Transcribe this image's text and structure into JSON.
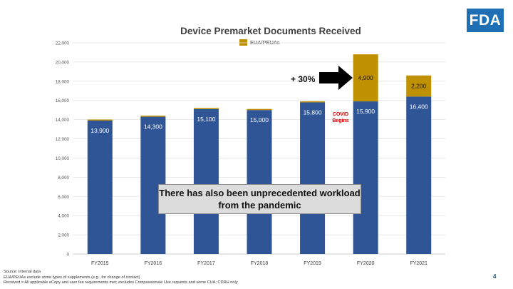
{
  "logo_text": "FDA",
  "page_number": "4",
  "callout": {
    "text": "There has also been unprecedented workload from the pandemic",
    "increase_label": "+ 30%",
    "covid_label": "COVID Begins"
  },
  "notes": [
    "Source: Internal data",
    "EUA/PEUAs exclude some types of supplements (e.g., for change of contact)",
    "Received = All applicable eCopy and user fee requirements met; excludes Compassionate Use requests and some CUA; CDRH only"
  ],
  "colors": {
    "base": "#2f5597",
    "eua": "#bf9000",
    "logo": "#1f6fb5"
  },
  "chart_data": {
    "type": "bar",
    "stacked": true,
    "title": "Device Premarket Documents Received",
    "categories": [
      "FY2015",
      "FY2016",
      "FY2017",
      "FY2018",
      "FY2019",
      "FY2020",
      "FY2021"
    ],
    "series": [
      {
        "values": [
          13900,
          14300,
          15100,
          15000,
          15800,
          15900,
          16400
        ],
        "labels": [
          "13,900",
          "14,300",
          "15,100",
          "15,000",
          "15,800",
          "15,900",
          "16,400"
        ]
      },
      {
        "name": "EUA/PEUAs",
        "values": [
          0,
          0,
          0,
          0,
          0,
          4900,
          2200
        ],
        "labels": [
          "",
          "",
          "",
          "",
          "",
          "4,900",
          "2,200"
        ]
      }
    ],
    "ylim": [
      0,
      22000
    ],
    "yticks": [
      0,
      2000,
      4000,
      6000,
      8000,
      10000,
      12000,
      14000,
      16000,
      18000,
      20000,
      22000
    ],
    "ytick_labels": [
      "0",
      "2,000",
      "4,000",
      "6,000",
      "8,000",
      "10,000",
      "12,000",
      "14,000",
      "16,000",
      "18,000",
      "20,000",
      "22,000"
    ],
    "grid": true,
    "legend_position": "top-center"
  }
}
